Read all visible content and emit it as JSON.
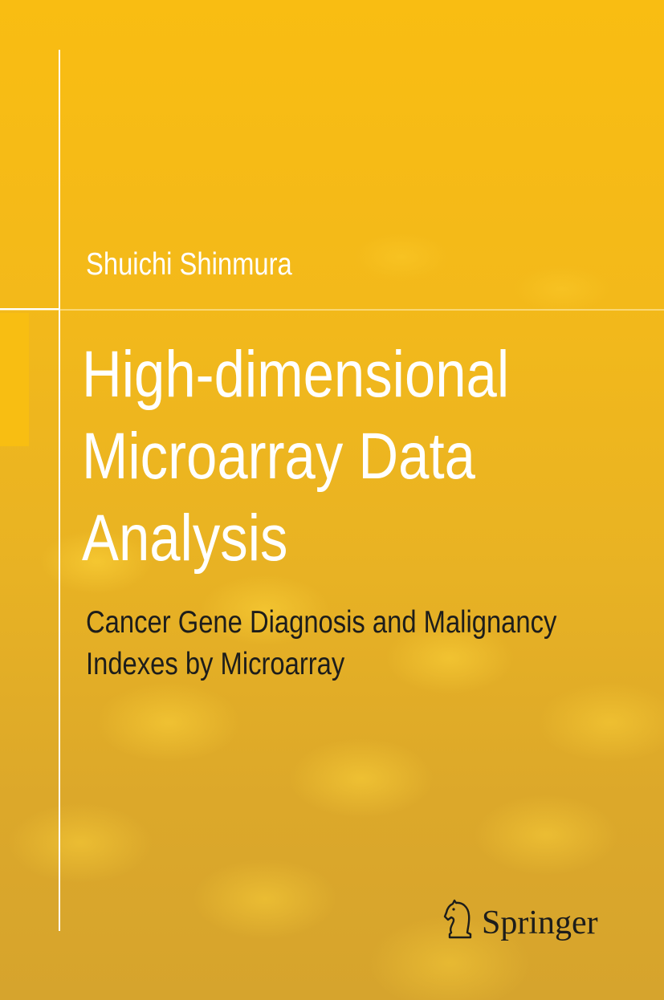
{
  "author": "Shuichi Shinmura",
  "title": {
    "lines": [
      "High-dimensional",
      "Microarray Data",
      "Analysis"
    ]
  },
  "subtitle": {
    "lines": [
      "Cancer Gene Diagnosis and Malignancy",
      "Indexes by Microarray"
    ]
  },
  "publisher": "Springer"
}
